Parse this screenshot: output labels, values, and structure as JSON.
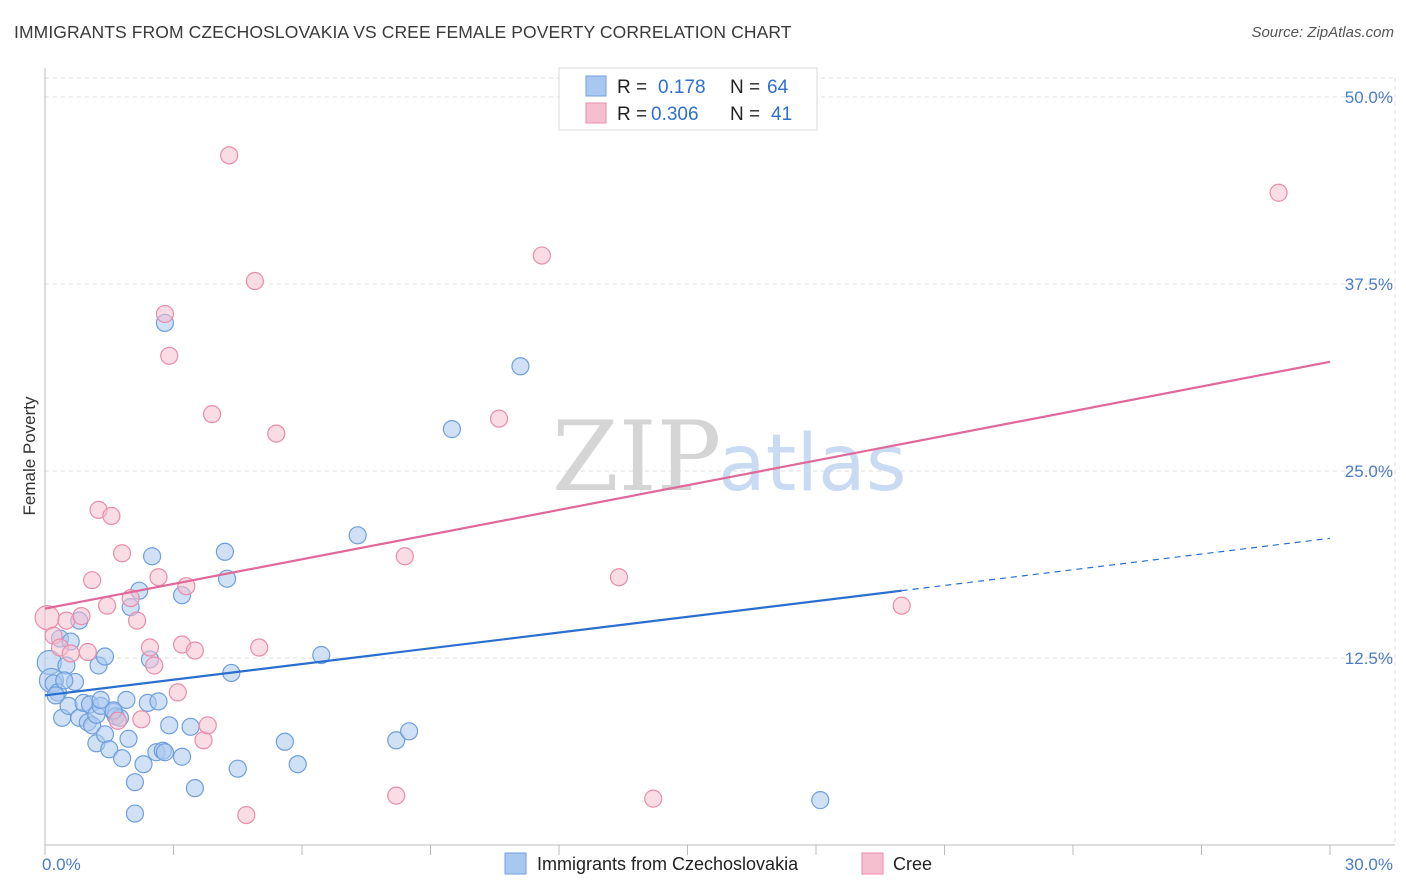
{
  "title": "IMMIGRANTS FROM CZECHOSLOVAKIA VS CREE FEMALE POVERTY CORRELATION CHART",
  "source": "Source: ZipAtlas.com",
  "watermark": {
    "zip": "ZIP",
    "atlas": "atlas"
  },
  "colors": {
    "blue_fill": "#a9c8ef",
    "blue_stroke": "#6f9fdc",
    "blue_line": "#2a6fd0",
    "pink_fill": "#f6bfd0",
    "pink_stroke": "#e98dab",
    "pink_line": "#e0689a",
    "grid": "#dddddd",
    "tick_text": "#4a7cc7"
  },
  "legend_box": {
    "rows": [
      {
        "r_label": "R =",
        "r_value": "0.178",
        "n_label": "N =",
        "n_value": "64",
        "series": "blue"
      },
      {
        "r_label": "R =",
        "r_value": "0.306",
        "n_label": "N =",
        "n_value": "41",
        "series": "pink"
      }
    ]
  },
  "chart_data": {
    "type": "scatter",
    "title": "IMMIGRANTS FROM CZECHOSLOVAKIA VS CREE FEMALE POVERTY CORRELATION CHART",
    "xlabel": "",
    "ylabel": "Female Poverty",
    "xlim": [
      0,
      30
    ],
    "ylim": [
      0,
      50
    ],
    "x_tick_labels": [
      "0.0%",
      "30.0%"
    ],
    "y_ticks": [
      12.5,
      25.0,
      37.5,
      50.0
    ],
    "y_tick_labels": [
      "12.5%",
      "25.0%",
      "37.5%",
      "50.0%"
    ],
    "grid": true,
    "legend": "top-center",
    "series": [
      {
        "name": "Immigrants from Czechoslovakia",
        "color": "blue",
        "R": 0.178,
        "N": 64,
        "trend": {
          "x0": 0,
          "y0": 10.0,
          "x1": 20,
          "y1": 17.0,
          "dashed_to_x": 30,
          "dashed_to_y": 20.5
        },
        "points": [
          [
            0.1,
            12.2
          ],
          [
            0.15,
            11.0
          ],
          [
            0.2,
            10.8
          ],
          [
            0.3,
            10.2
          ],
          [
            0.35,
            13.8
          ],
          [
            0.4,
            8.5
          ],
          [
            0.5,
            12.0
          ],
          [
            0.55,
            9.3
          ],
          [
            0.6,
            13.6
          ],
          [
            0.7,
            10.9
          ],
          [
            0.8,
            8.5
          ],
          [
            0.8,
            15.0
          ],
          [
            0.9,
            9.5
          ],
          [
            1.0,
            8.2
          ],
          [
            1.05,
            9.4
          ],
          [
            1.1,
            8.0
          ],
          [
            1.2,
            8.7
          ],
          [
            1.3,
            9.3
          ],
          [
            1.2,
            6.8
          ],
          [
            1.25,
            12.0
          ],
          [
            1.3,
            9.7
          ],
          [
            1.4,
            12.6
          ],
          [
            1.4,
            7.4
          ],
          [
            1.5,
            6.4
          ],
          [
            1.6,
            8.9
          ],
          [
            1.65,
            8.6
          ],
          [
            1.75,
            8.5
          ],
          [
            1.8,
            5.8
          ],
          [
            1.9,
            9.7
          ],
          [
            1.95,
            7.1
          ],
          [
            2.0,
            15.9
          ],
          [
            2.1,
            4.2
          ],
          [
            2.1,
            2.1
          ],
          [
            2.2,
            17.0
          ],
          [
            2.3,
            5.4
          ],
          [
            2.4,
            9.5
          ],
          [
            2.45,
            12.4
          ],
          [
            2.5,
            19.3
          ],
          [
            2.6,
            6.2
          ],
          [
            2.65,
            9.6
          ],
          [
            2.75,
            6.3
          ],
          [
            2.8,
            6.2
          ],
          [
            2.8,
            34.9
          ],
          [
            3.2,
            5.9
          ],
          [
            3.2,
            16.7
          ],
          [
            3.5,
            3.8
          ],
          [
            3.4,
            7.9
          ],
          [
            4.2,
            19.6
          ],
          [
            4.25,
            17.8
          ],
          [
            4.35,
            11.5
          ],
          [
            4.5,
            5.1
          ],
          [
            5.6,
            6.9
          ],
          [
            5.9,
            5.4
          ],
          [
            6.45,
            12.7
          ],
          [
            7.3,
            20.7
          ],
          [
            8.2,
            7.0
          ],
          [
            8.5,
            7.6
          ],
          [
            9.5,
            27.8
          ],
          [
            11.1,
            32.0
          ],
          [
            18.1,
            3.0
          ],
          [
            0.25,
            10.0
          ],
          [
            0.45,
            11.0
          ],
          [
            1.6,
            9.0
          ],
          [
            2.9,
            8.0
          ]
        ]
      },
      {
        "name": "Cree",
        "color": "pink",
        "R": 0.306,
        "N": 41,
        "trend": {
          "x0": 0,
          "y0": 15.8,
          "x1": 30,
          "y1": 32.3
        },
        "points": [
          [
            0.05,
            15.2
          ],
          [
            0.2,
            14.0
          ],
          [
            0.35,
            13.2
          ],
          [
            0.5,
            15.0
          ],
          [
            0.6,
            12.8
          ],
          [
            0.85,
            15.3
          ],
          [
            1.0,
            12.9
          ],
          [
            1.1,
            17.7
          ],
          [
            1.25,
            22.4
          ],
          [
            1.45,
            16.0
          ],
          [
            1.55,
            22.0
          ],
          [
            1.7,
            8.3
          ],
          [
            1.8,
            19.5
          ],
          [
            2.0,
            16.5
          ],
          [
            2.15,
            15.0
          ],
          [
            2.25,
            8.4
          ],
          [
            2.45,
            13.2
          ],
          [
            2.55,
            12.0
          ],
          [
            2.65,
            17.9
          ],
          [
            2.8,
            35.5
          ],
          [
            2.9,
            32.7
          ],
          [
            3.1,
            10.2
          ],
          [
            3.2,
            13.4
          ],
          [
            3.3,
            17.3
          ],
          [
            3.5,
            13.0
          ],
          [
            3.7,
            7.0
          ],
          [
            3.8,
            8.0
          ],
          [
            3.9,
            28.8
          ],
          [
            4.3,
            46.1
          ],
          [
            4.7,
            2.0
          ],
          [
            4.9,
            37.7
          ],
          [
            5.0,
            13.2
          ],
          [
            5.4,
            27.5
          ],
          [
            8.2,
            3.3
          ],
          [
            8.4,
            19.3
          ],
          [
            10.6,
            28.5
          ],
          [
            11.6,
            39.4
          ],
          [
            13.4,
            17.9
          ],
          [
            14.2,
            3.1
          ],
          [
            20.0,
            16.0
          ],
          [
            28.8,
            43.6
          ]
        ]
      }
    ]
  },
  "bottom_legend": {
    "items": [
      {
        "label": "Immigrants from Czechoslovakia",
        "series": "blue"
      },
      {
        "label": "Cree",
        "series": "pink"
      }
    ]
  }
}
